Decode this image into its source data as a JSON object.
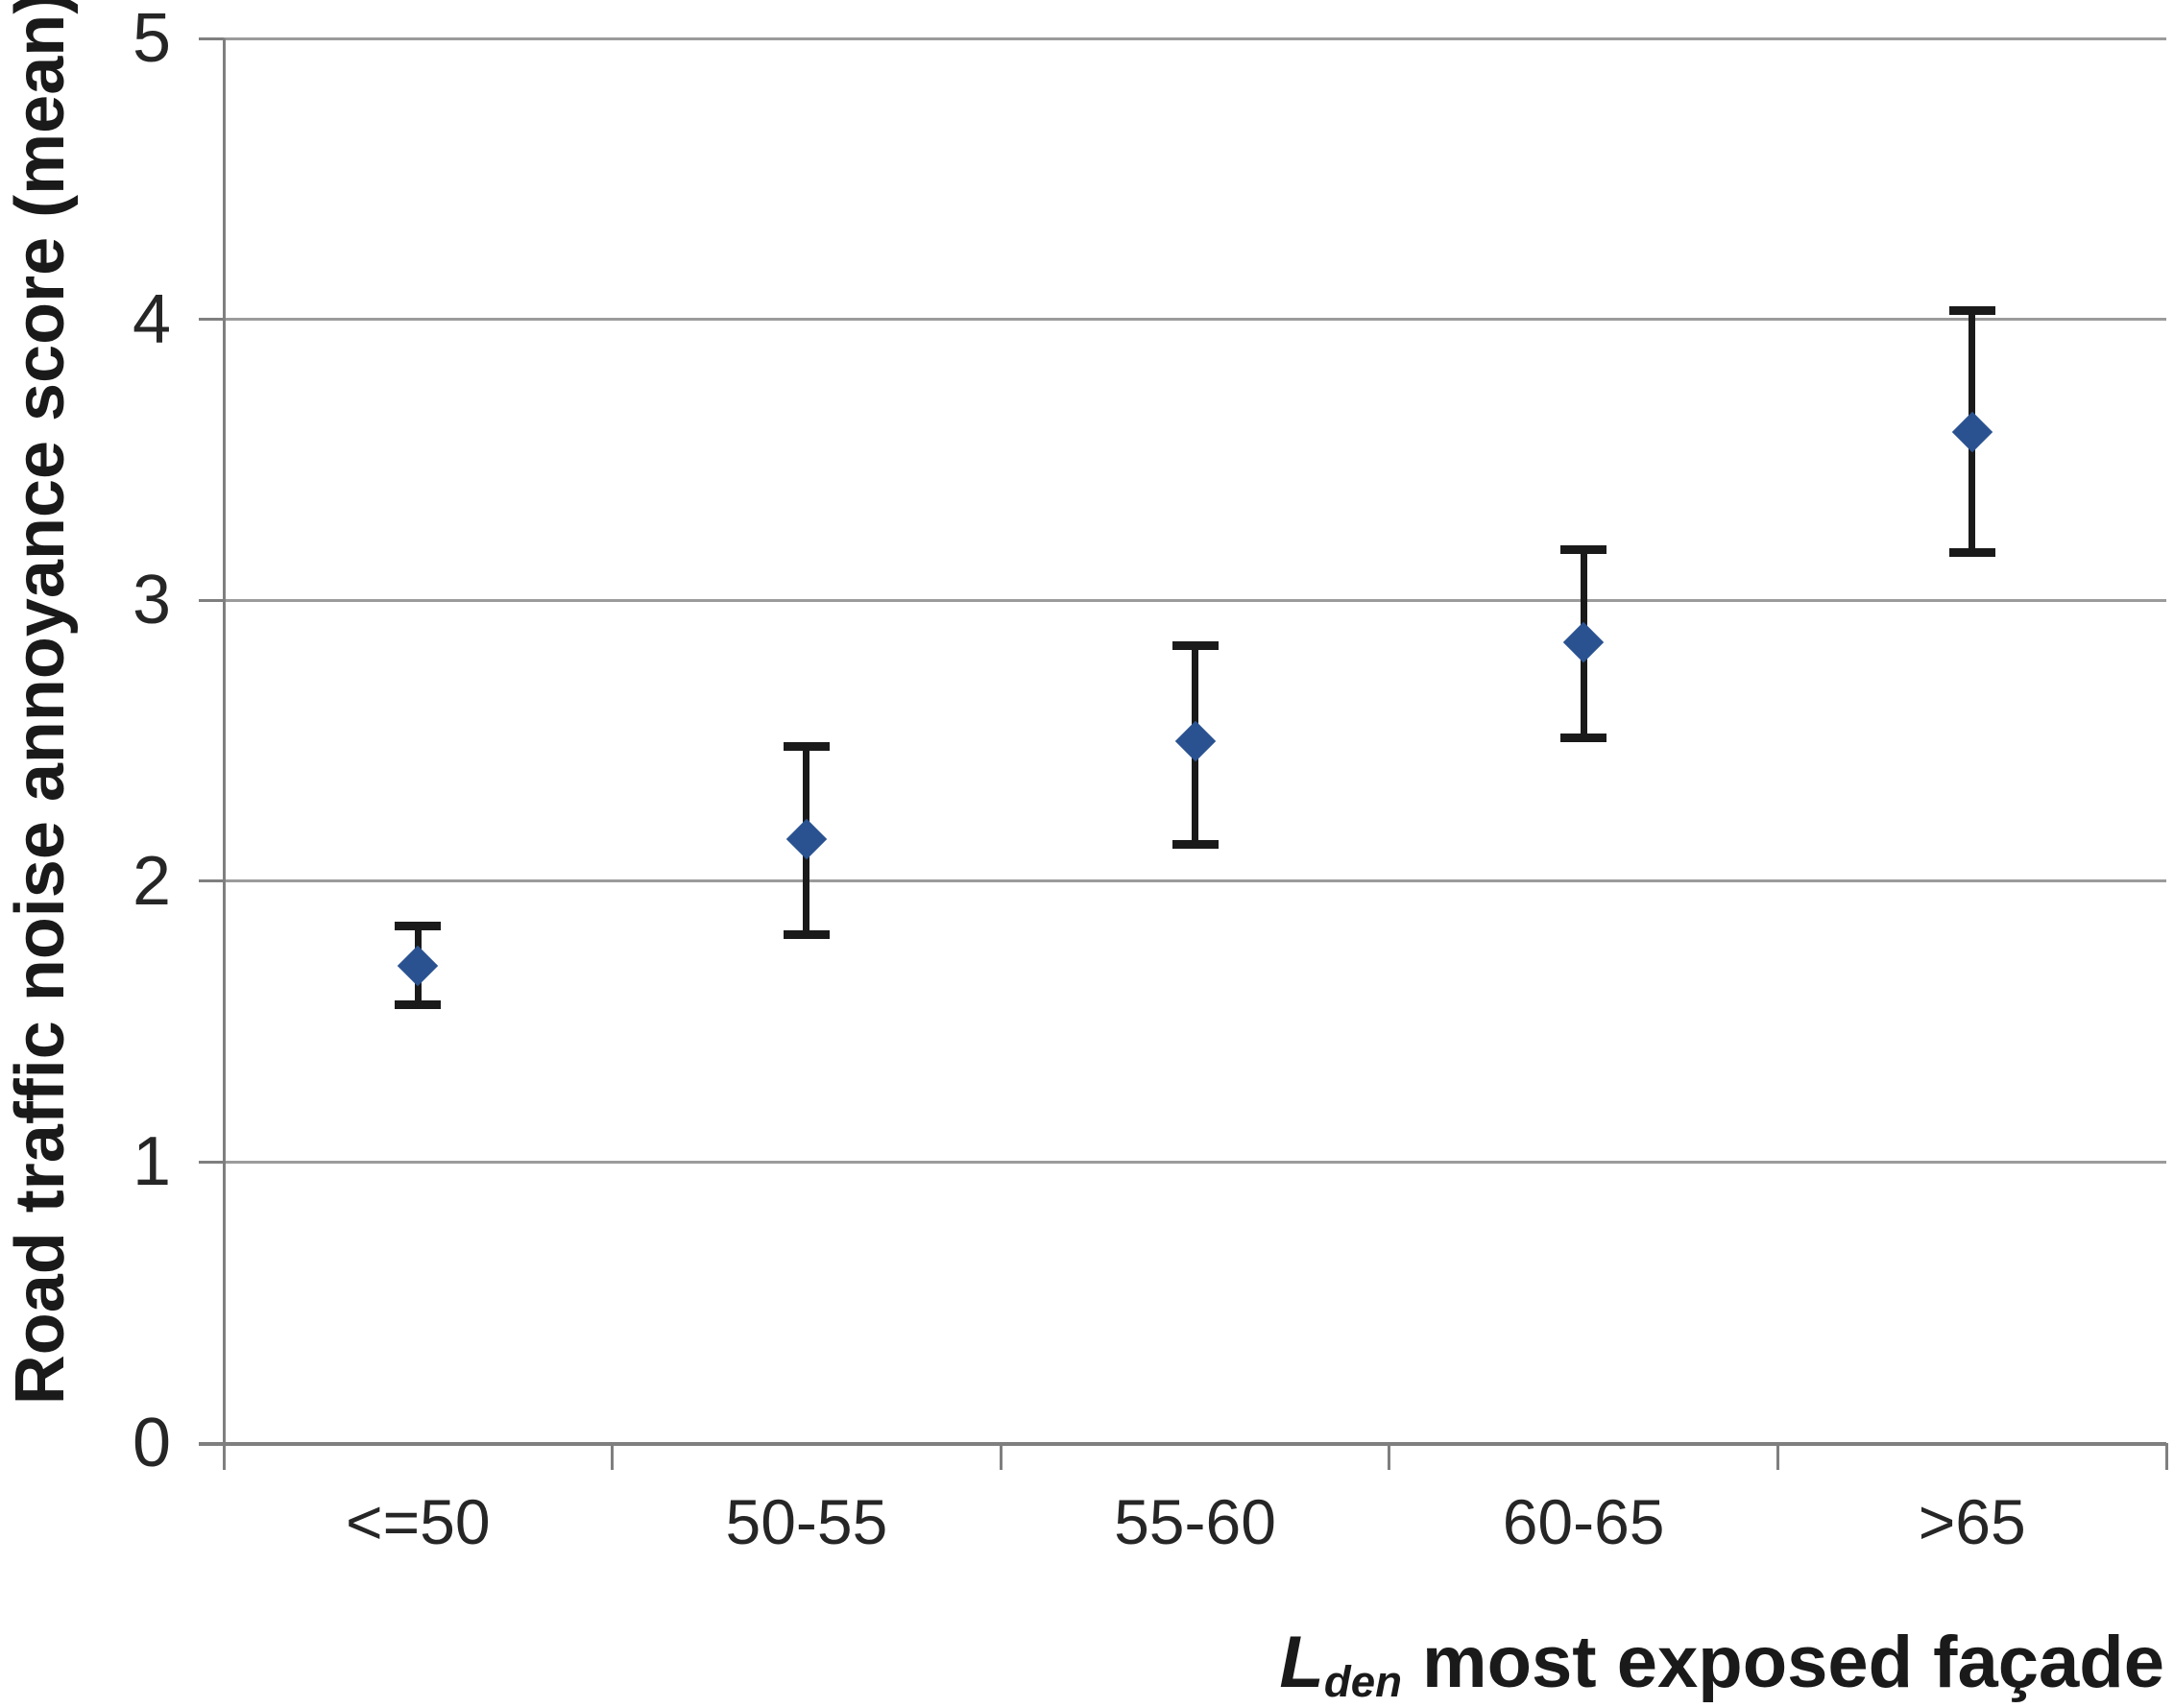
{
  "chart_data": {
    "type": "scatter",
    "subtype": "points-with-error-bars",
    "categories": [
      "<=50",
      "50-55",
      "55-60",
      "60-65",
      ">65"
    ],
    "series": [
      {
        "values": [
          1.7,
          2.15,
          2.5,
          2.85,
          3.6
        ],
        "error_upper": [
          1.84,
          2.48,
          2.84,
          3.18,
          4.03
        ],
        "error_lower": [
          1.56,
          1.81,
          2.13,
          2.51,
          3.17
        ]
      }
    ],
    "ylabel": "Road traffic noise annoyance score (mean)",
    "xlabel": {
      "prefix_italic": "L",
      "subscript": "den",
      "rest": " most exposed façade"
    },
    "ylim": [
      0,
      5
    ],
    "yticks": [
      0,
      1,
      2,
      3,
      4,
      5
    ],
    "grid": "horizontal",
    "legend": "none",
    "marker": "diamond",
    "colors": {
      "marker": "#2A5291",
      "error_bar": "#1a1a1a",
      "gridline": "#9b9b9b",
      "axis": "#7f7f7f",
      "text": "#262626",
      "background": "#ffffff"
    }
  }
}
